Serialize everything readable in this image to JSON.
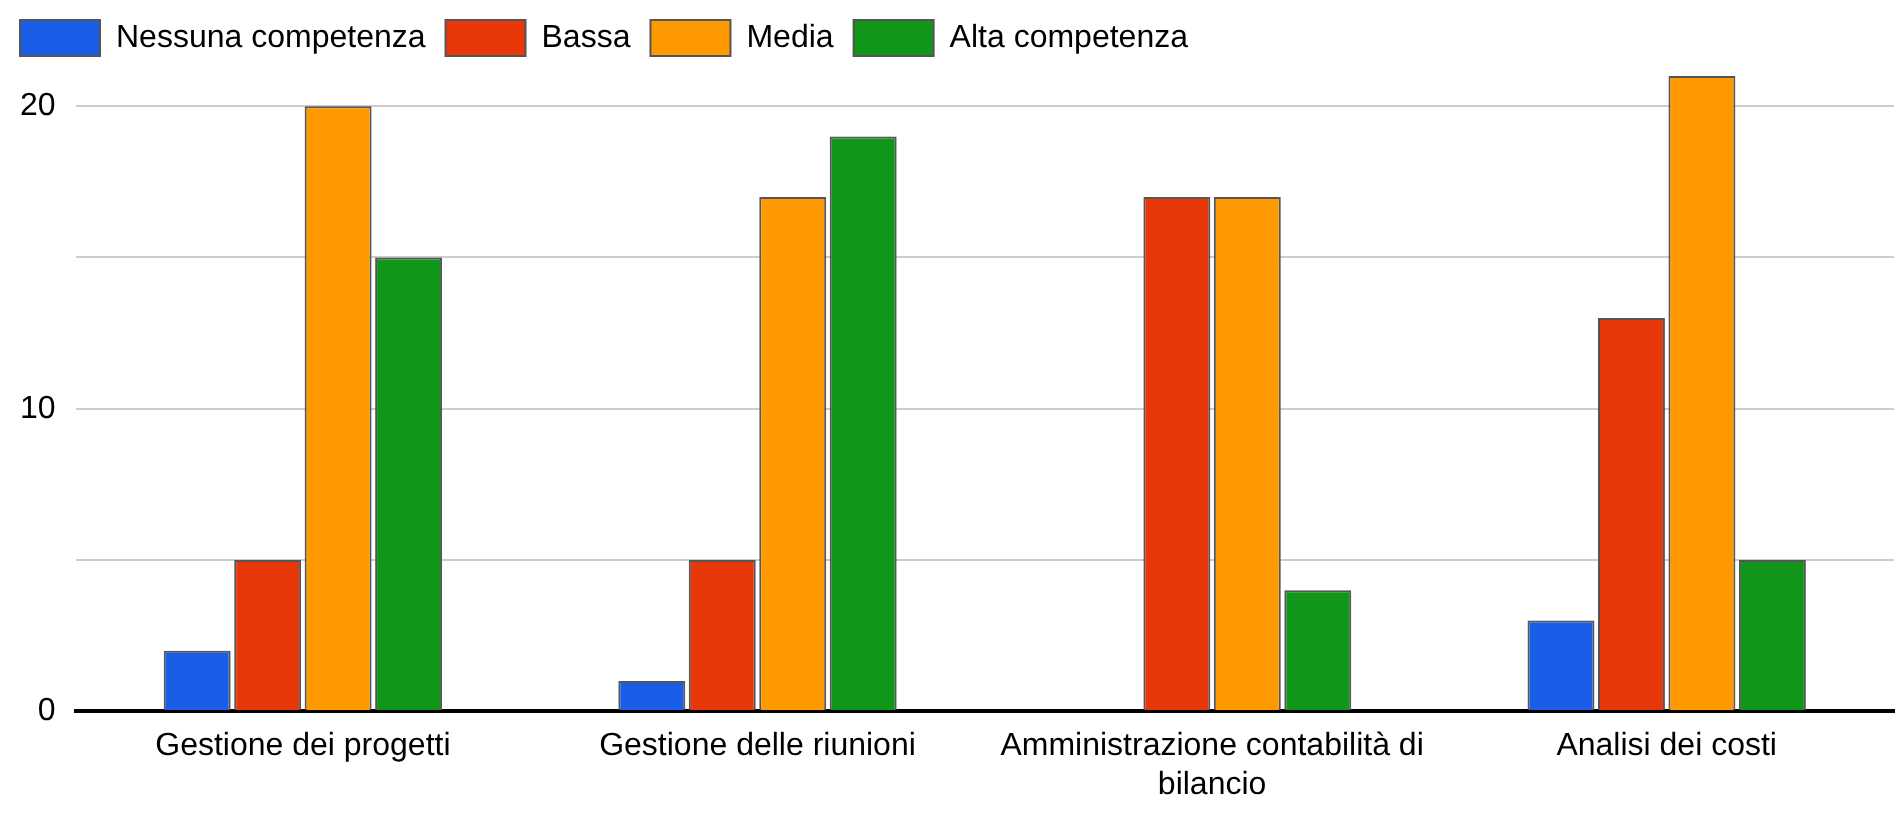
{
  "chart_data": {
    "type": "bar",
    "categories": [
      "Gestione dei progetti",
      "Gestione delle riunioni",
      "Amministrazione contabilità di bilancio",
      "Analisi dei costi"
    ],
    "series": [
      {
        "name": "Nessuna competenza",
        "color": "#1a5ee8",
        "values": [
          2,
          1,
          0,
          3
        ]
      },
      {
        "name": "Bassa",
        "color": "#e8380a",
        "values": [
          5,
          5,
          17,
          13
        ]
      },
      {
        "name": "Media",
        "color": "#ff9900",
        "values": [
          20,
          17,
          17,
          21
        ]
      },
      {
        "name": "Alta competenza",
        "color": "#109618",
        "values": [
          15,
          19,
          4,
          5
        ]
      }
    ],
    "ylim": [
      0,
      21
    ],
    "yticks": [
      0,
      {
        "value": 5,
        "label": null
      },
      10,
      {
        "value": 15,
        "label": null
      },
      20
    ],
    "grid": "y",
    "legend": "top left"
  }
}
